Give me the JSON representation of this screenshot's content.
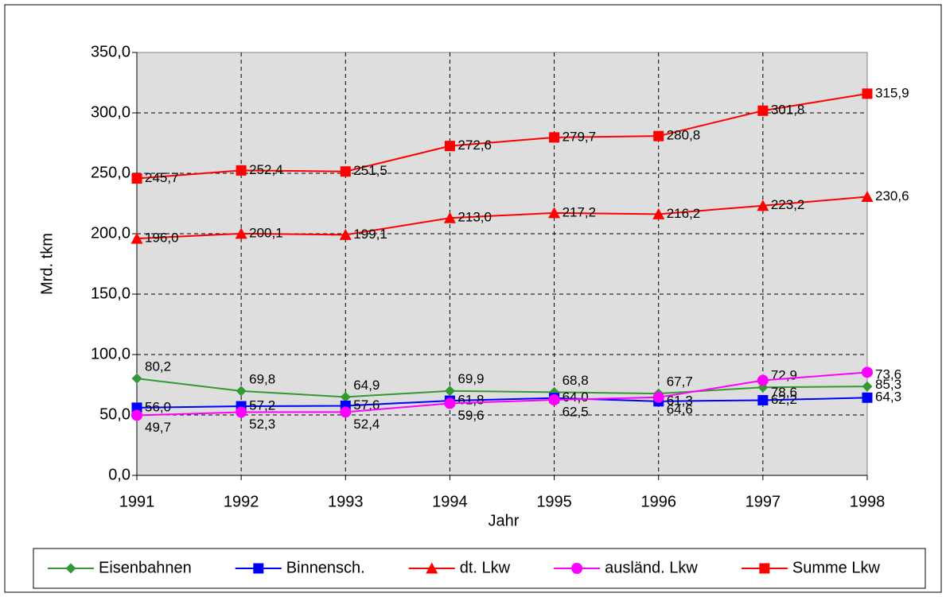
{
  "chart_data": {
    "type": "line",
    "x_label": "Jahr",
    "y_label": "Mrd. tkm",
    "categories": [
      "1991",
      "1992",
      "1993",
      "1994",
      "1995",
      "1996",
      "1997",
      "1998"
    ],
    "ylim": [
      0,
      350
    ],
    "yticks": [
      {
        "value": 0,
        "label": "0,0"
      },
      {
        "value": 50,
        "label": "50,0"
      },
      {
        "value": 100,
        "label": "100,0"
      },
      {
        "value": 150,
        "label": "150,0"
      },
      {
        "value": 200,
        "label": "200,0"
      },
      {
        "value": 250,
        "label": "250,0"
      },
      {
        "value": 300,
        "label": "300,0"
      },
      {
        "value": 350,
        "label": "350,0"
      }
    ],
    "grid": true,
    "legend": "bottom",
    "series": [
      {
        "name": "Eisenbahnen",
        "color": "#339933",
        "marker": "diamond",
        "values": [
          80.2,
          69.8,
          64.9,
          69.9,
          68.8,
          67.7,
          72.9,
          73.6
        ],
        "value_labels": [
          "80,2",
          "69,8",
          "64,9",
          "69,9",
          "68,8",
          "67,7",
          "72,9",
          "73,6"
        ]
      },
      {
        "name": "Binnensch.",
        "color": "#0000ff",
        "marker": "square",
        "values": [
          56.0,
          57.2,
          57.6,
          61.8,
          64.0,
          61.3,
          62.2,
          64.3
        ],
        "value_labels": [
          "56,0",
          "57,2",
          "57,6",
          "61,8",
          "64,0",
          "61,3",
          "62,2",
          "64,3"
        ]
      },
      {
        "name": "dt. Lkw",
        "color": "#ff0000",
        "marker": "triangle",
        "values": [
          196.0,
          200.1,
          199.1,
          213.0,
          217.2,
          216.2,
          223.2,
          230.6
        ],
        "value_labels": [
          "196,0",
          "200,1",
          "199,1",
          "213,0",
          "217,2",
          "216,2",
          "223,2",
          "230,6"
        ]
      },
      {
        "name": "ausländ. Lkw",
        "color": "#ff00ff",
        "marker": "circle",
        "values": [
          49.7,
          52.3,
          52.4,
          59.6,
          62.5,
          64.6,
          78.6,
          85.3
        ],
        "value_labels": [
          "49,7",
          "52,3",
          "52,4",
          "59,6",
          "62,5",
          "64,6",
          "78,6",
          "85,3"
        ]
      },
      {
        "name": "Summe Lkw",
        "color": "#ff0000",
        "marker": "square",
        "values": [
          245.7,
          252.4,
          251.5,
          272.6,
          279.7,
          280.8,
          301.8,
          315.9
        ],
        "value_labels": [
          "245,7",
          "252,4",
          "251,5",
          "272,6",
          "279,7",
          "280,8",
          "301,8",
          "315,9"
        ]
      }
    ]
  }
}
